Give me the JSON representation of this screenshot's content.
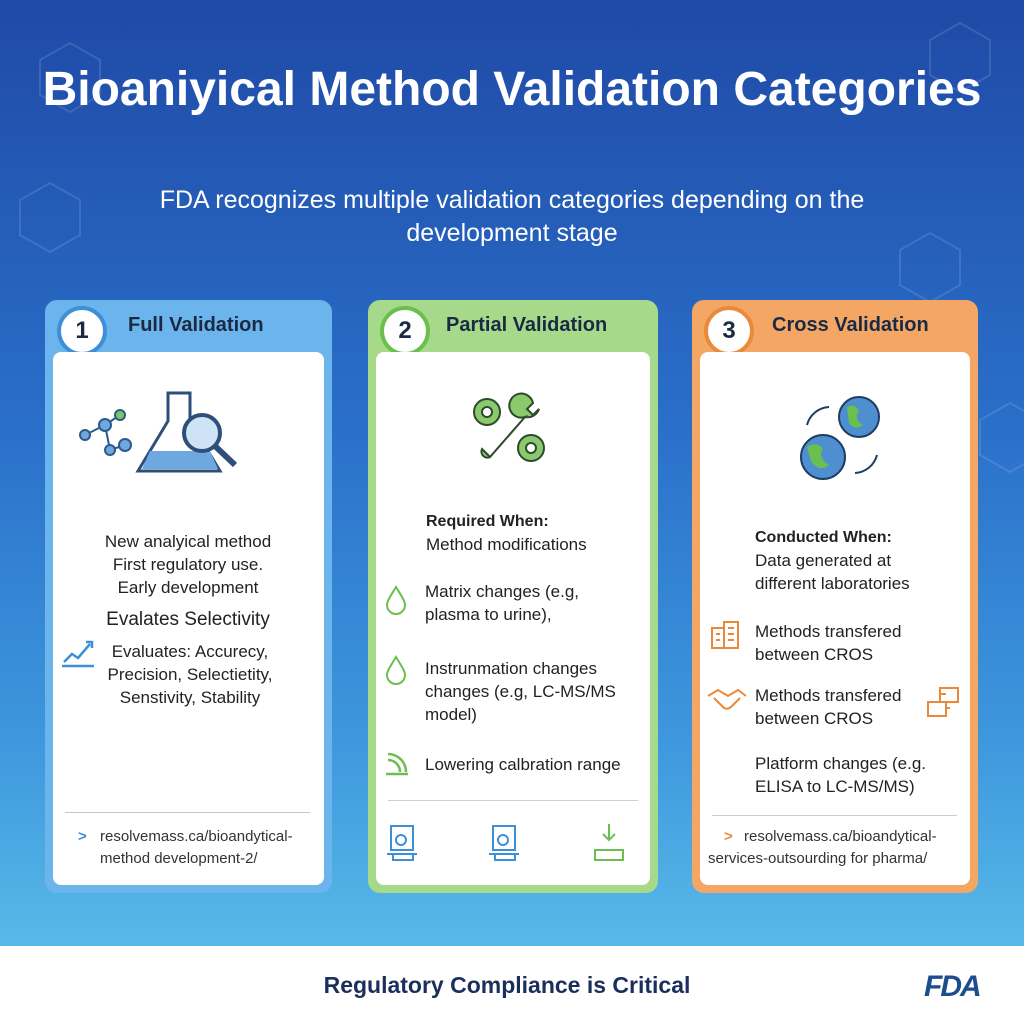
{
  "header": {
    "title": "Bioaniyical Method Validation Categories",
    "subtitle": "FDA recognizes multiple validation categories depending on the development stage"
  },
  "cards": [
    {
      "number": "1",
      "title": "Full Validation",
      "lines": [
        "New analyical method",
        "First regulatory use.",
        "Early development"
      ],
      "focus": "Evalates Selectivity",
      "evaluates": "Evaluates: Accurecy, Precision, Selectietity, Senstivity, Stability",
      "link": "resolvemass.ca/bioandytical-method development-2/"
    },
    {
      "number": "2",
      "title": "Partial Validation",
      "heading": "Required When:",
      "intro": "Method modifications",
      "items": [
        "Matrix changes (e.g, plasma to urine),",
        "Instrunmation changes changes (e.g, LC-MS/MS model)",
        "Lowering calbration range"
      ]
    },
    {
      "number": "3",
      "title": "Cross Validation",
      "heading": "Conducted When:",
      "intro": "Data generated at different laboratories",
      "items": [
        "Methods transfered between CROS",
        "Methods transfered between CROS",
        "Platform changes (e.g. ELISA to LC-MS/MS)"
      ],
      "link": "resolvemass.ca/bioandytical-services-outsourding for pharma/"
    }
  ],
  "footer": {
    "text": "Regulatory Compliance is Critical",
    "logo": "FDA"
  }
}
